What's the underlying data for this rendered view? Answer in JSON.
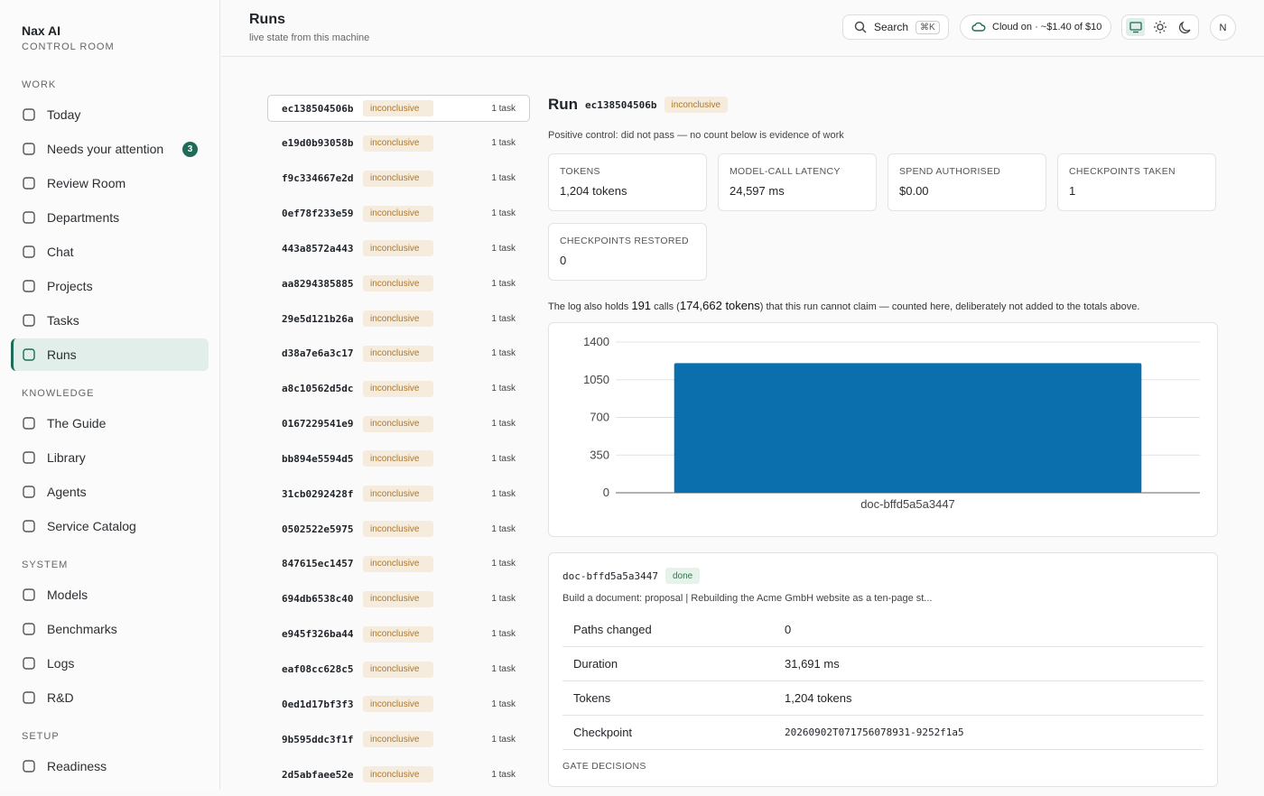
{
  "sidebar": {
    "brand": "Nax AI",
    "subtitle": "CONTROL ROOM",
    "sections": [
      {
        "title": "WORK",
        "items": [
          {
            "label": "Today"
          },
          {
            "label": "Needs your attention",
            "badge": 3
          },
          {
            "label": "Review Room"
          },
          {
            "label": "Departments"
          },
          {
            "label": "Chat"
          },
          {
            "label": "Projects"
          },
          {
            "label": "Tasks"
          },
          {
            "label": "Runs",
            "active": true
          }
        ]
      },
      {
        "title": "KNOWLEDGE",
        "items": [
          {
            "label": "The Guide"
          },
          {
            "label": "Library"
          },
          {
            "label": "Agents"
          },
          {
            "label": "Service Catalog"
          }
        ]
      },
      {
        "title": "SYSTEM",
        "items": [
          {
            "label": "Models"
          },
          {
            "label": "Benchmarks"
          },
          {
            "label": "Logs"
          },
          {
            "label": "R&D"
          }
        ]
      },
      {
        "title": "SETUP",
        "items": [
          {
            "label": "Readiness"
          }
        ]
      }
    ]
  },
  "header": {
    "title": "Runs",
    "subtitle": "live state from this machine",
    "search": "Search",
    "shortcut": "⌘K",
    "cloud": "Cloud on · ~$1.40 of $10",
    "avatar": "N"
  },
  "runs": [
    {
      "id": "ec138504506b",
      "status": "inconclusive",
      "tasks": "1 task"
    },
    {
      "id": "e19d0b93058b",
      "status": "inconclusive",
      "tasks": "1 task"
    },
    {
      "id": "f9c334667e2d",
      "status": "inconclusive",
      "tasks": "1 task"
    },
    {
      "id": "0ef78f233e59",
      "status": "inconclusive",
      "tasks": "1 task"
    },
    {
      "id": "443a8572a443",
      "status": "inconclusive",
      "tasks": "1 task"
    },
    {
      "id": "aa8294385885",
      "status": "inconclusive",
      "tasks": "1 task"
    },
    {
      "id": "29e5d121b26a",
      "status": "inconclusive",
      "tasks": "1 task"
    },
    {
      "id": "d38a7e6a3c17",
      "status": "inconclusive",
      "tasks": "1 task"
    },
    {
      "id": "a8c10562d5dc",
      "status": "inconclusive",
      "tasks": "1 task"
    },
    {
      "id": "0167229541e9",
      "status": "inconclusive",
      "tasks": "1 task"
    },
    {
      "id": "bb894e5594d5",
      "status": "inconclusive",
      "tasks": "1 task"
    },
    {
      "id": "31cb0292428f",
      "status": "inconclusive",
      "tasks": "1 task"
    },
    {
      "id": "0502522e5975",
      "status": "inconclusive",
      "tasks": "1 task"
    },
    {
      "id": "847615ec1457",
      "status": "inconclusive",
      "tasks": "1 task"
    },
    {
      "id": "694db6538c40",
      "status": "inconclusive",
      "tasks": "1 task"
    },
    {
      "id": "e945f326ba44",
      "status": "inconclusive",
      "tasks": "1 task"
    },
    {
      "id": "eaf08cc628c5",
      "status": "inconclusive",
      "tasks": "1 task"
    },
    {
      "id": "0ed1d17bf3f3",
      "status": "inconclusive",
      "tasks": "1 task"
    },
    {
      "id": "9b595ddc3f1f",
      "status": "inconclusive",
      "tasks": "1 task"
    },
    {
      "id": "2d5abfaee52e",
      "status": "inconclusive",
      "tasks": "1 task"
    }
  ],
  "detail": {
    "title": "Run",
    "id": "ec138504506b",
    "status": "inconclusive",
    "note": "Positive control: did not pass — no count below is evidence of work",
    "stats": [
      {
        "label": "TOKENS",
        "value": "1,204 tokens"
      },
      {
        "label": "MODEL-CALL LATENCY",
        "value": "24,597 ms"
      },
      {
        "label": "SPEND AUTHORISED",
        "value": "$0.00"
      },
      {
        "label": "CHECKPOINTS TAKEN",
        "value": "1"
      },
      {
        "label": "CHECKPOINTS RESTORED",
        "value": "0"
      }
    ],
    "log": {
      "prefix": "The log also holds",
      "calls": "191",
      "calls_word": "calls (",
      "tokens": "174,662 tokens",
      "suffix": ") that this run cannot claim — counted here, deliberately not added to the totals above."
    },
    "doc": {
      "id": "doc-bffd5a5a3447",
      "status": "done",
      "description": "Build a document: proposal | Rebuilding the Acme GmbH website as a ten-page st...",
      "rows": [
        [
          "Paths changed",
          "0"
        ],
        [
          "Duration",
          "31,691 ms"
        ],
        [
          "Tokens",
          "1,204 tokens"
        ],
        [
          "Checkpoint",
          "20260902T071756078931-9252f1a5"
        ]
      ],
      "gate": "GATE DECISIONS"
    }
  },
  "chart_data": {
    "type": "bar",
    "categories": [
      "doc-bffd5a5a3447"
    ],
    "values": [
      1204
    ],
    "color": "#0b6fae",
    "ylim": [
      0,
      1400
    ],
    "yticks": [
      0,
      350,
      700,
      1050,
      1400
    ],
    "grid": true
  }
}
